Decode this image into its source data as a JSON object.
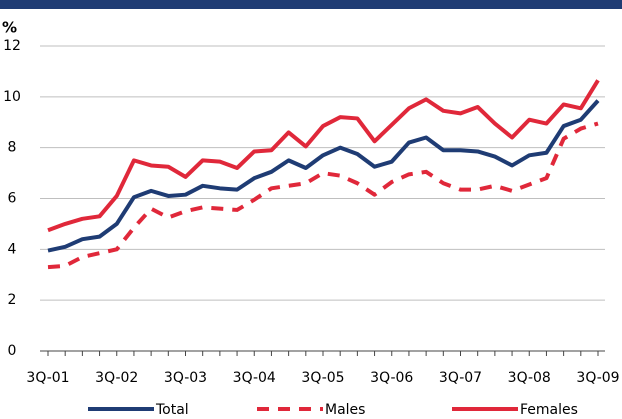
{
  "chart_data": {
    "type": "line",
    "y_label": "%",
    "categories": [
      "3Q-01",
      null,
      null,
      null,
      "3Q-02",
      null,
      null,
      null,
      "3Q-03",
      null,
      null,
      null,
      "3Q-04",
      null,
      null,
      null,
      "3Q-05",
      null,
      null,
      null,
      "3Q-06",
      null,
      null,
      null,
      "3Q-07",
      null,
      null,
      null,
      "3Q-08",
      null,
      null,
      null,
      "3Q-09"
    ],
    "series": [
      {
        "name": "Total",
        "color": "#1f3c74",
        "line_style": "solid",
        "values": [
          3.95,
          4.1,
          4.4,
          4.5,
          5.0,
          6.05,
          6.3,
          6.1,
          6.15,
          6.5,
          6.4,
          6.35,
          6.8,
          7.05,
          7.5,
          7.2,
          7.7,
          8.0,
          7.75,
          7.25,
          7.45,
          8.2,
          8.4,
          7.9,
          7.9,
          7.85,
          7.65,
          7.3,
          7.7,
          7.8,
          8.85,
          9.1,
          9.85
        ]
      },
      {
        "name": "Males",
        "color": "#e0283a",
        "line_style": "dashed",
        "values": [
          3.3,
          3.35,
          3.7,
          3.85,
          4.0,
          4.85,
          5.6,
          5.25,
          5.5,
          5.65,
          5.6,
          5.55,
          5.95,
          6.4,
          6.5,
          6.6,
          7.0,
          6.9,
          6.6,
          6.15,
          6.65,
          6.95,
          7.05,
          6.6,
          6.35,
          6.35,
          6.5,
          6.3,
          6.55,
          6.8,
          8.35,
          8.75,
          8.95
        ]
      },
      {
        "name": "Females",
        "color": "#e0283a",
        "line_style": "solid",
        "values": [
          4.75,
          5.0,
          5.2,
          5.3,
          6.1,
          7.5,
          7.3,
          7.25,
          6.85,
          7.5,
          7.45,
          7.2,
          7.85,
          7.9,
          8.6,
          8.05,
          8.85,
          9.2,
          9.15,
          8.25,
          8.9,
          9.55,
          9.9,
          9.45,
          9.35,
          9.6,
          8.95,
          8.4,
          9.1,
          8.95,
          9.7,
          9.55,
          10.65
        ]
      }
    ],
    "ylim": [
      0,
      12
    ],
    "yticks": [
      0,
      2,
      4,
      6,
      8,
      10,
      12
    ],
    "grid": true
  }
}
